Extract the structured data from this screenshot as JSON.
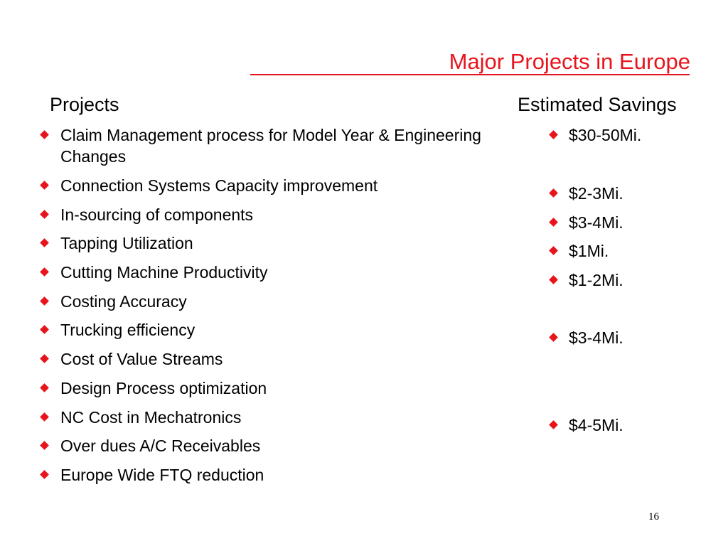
{
  "slide": {
    "title": "Major Projects in Europe",
    "projects_heading": "Projects",
    "savings_heading": "Estimated Savings",
    "projects": [
      "Claim Management process for Model Year & Engineering Changes",
      "Connection Systems Capacity improvement",
      "In-sourcing of components",
      "Tapping Utilization",
      "Cutting Machine Productivity",
      "Costing Accuracy",
      "Trucking efficiency",
      "Cost of Value Streams",
      "Design Process optimization",
      "NC Cost in Mechatronics",
      "Over dues A/C Receivables",
      "Europe Wide FTQ reduction"
    ],
    "savings": [
      "$30-50Mi.",
      "$2-3Mi.",
      "$3-4Mi.",
      "$1Mi.",
      "$1-2Mi.",
      "$3-4Mi.",
      "$4-5Mi."
    ],
    "page_number": "16",
    "colors": {
      "accent": "#e8141c",
      "text": "#000000",
      "background": "#ffffff"
    }
  }
}
